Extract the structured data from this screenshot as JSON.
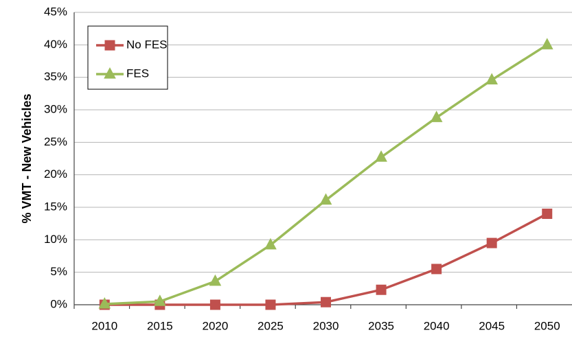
{
  "chart_data": {
    "type": "line",
    "y_label": "% VMT - New Vehicles",
    "categories": [
      "2010",
      "2015",
      "2020",
      "2025",
      "2030",
      "2035",
      "2040",
      "2045",
      "2050"
    ],
    "series": [
      {
        "name": "No FES",
        "color": "#c0504d",
        "marker": "square",
        "values": [
          0,
          0,
          0,
          0,
          0.4,
          2.3,
          5.5,
          9.5,
          14
        ]
      },
      {
        "name": "FES",
        "color": "#9bbb59",
        "marker": "triangle",
        "values": [
          0.1,
          0.5,
          3.6,
          9.2,
          16.1,
          22.7,
          28.8,
          34.6,
          40
        ]
      }
    ],
    "ylim": [
      0,
      45
    ],
    "yticks": [
      {
        "value": 0,
        "label": "0%"
      },
      {
        "value": 5,
        "label": "5%"
      },
      {
        "value": 10,
        "label": "10%"
      },
      {
        "value": 15,
        "label": "15%"
      },
      {
        "value": 20,
        "label": "20%"
      },
      {
        "value": 25,
        "label": "25%"
      },
      {
        "value": 30,
        "label": "30%"
      },
      {
        "value": 35,
        "label": "35%"
      },
      {
        "value": 40,
        "label": "40%"
      },
      {
        "value": 45,
        "label": "45%"
      }
    ],
    "grid": true,
    "legend": "upper left"
  }
}
